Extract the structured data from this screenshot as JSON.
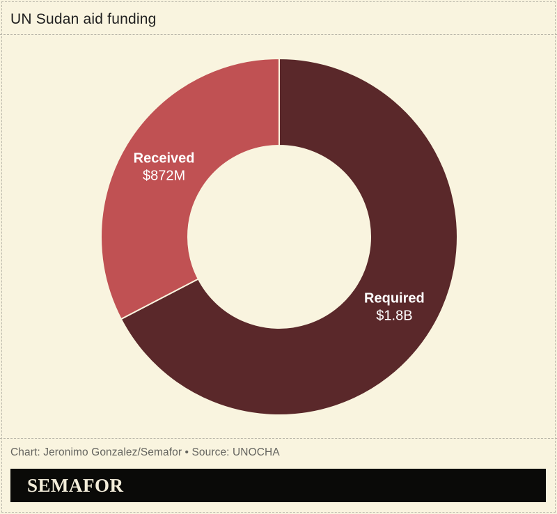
{
  "header": {
    "title": "UN Sudan aid funding"
  },
  "footer": {
    "attribution": "Chart: Jeronimo Gonzalez/Semafor • Source: UNOCHA",
    "logo": "SEMAFOR"
  },
  "colors": {
    "background": "#f9f4df",
    "required_segment": "#5a282a",
    "received_segment": "#c05153",
    "segment_label_text": "#ffffff",
    "title_text": "#1f1f1f",
    "attribution_text": "#64645f",
    "dashed_border": "#b9b6a9",
    "logo_bar": "#0a0a08",
    "logo_text": "#f3edda"
  },
  "chart_data": {
    "type": "pie",
    "subtype": "donut",
    "title": "UN Sudan aid funding",
    "start_angle_deg": 0,
    "direction": "clockwise",
    "legend": "none (labels inside slices)",
    "segments": [
      {
        "label": "Required",
        "display_value": "$1.8B",
        "value_millions_usd": 1800,
        "share_pct": 67.4,
        "color": "#5a282a"
      },
      {
        "label": "Received",
        "display_value": "$872M",
        "value_millions_usd": 872,
        "share_pct": 32.6,
        "color": "#c05153"
      }
    ]
  }
}
